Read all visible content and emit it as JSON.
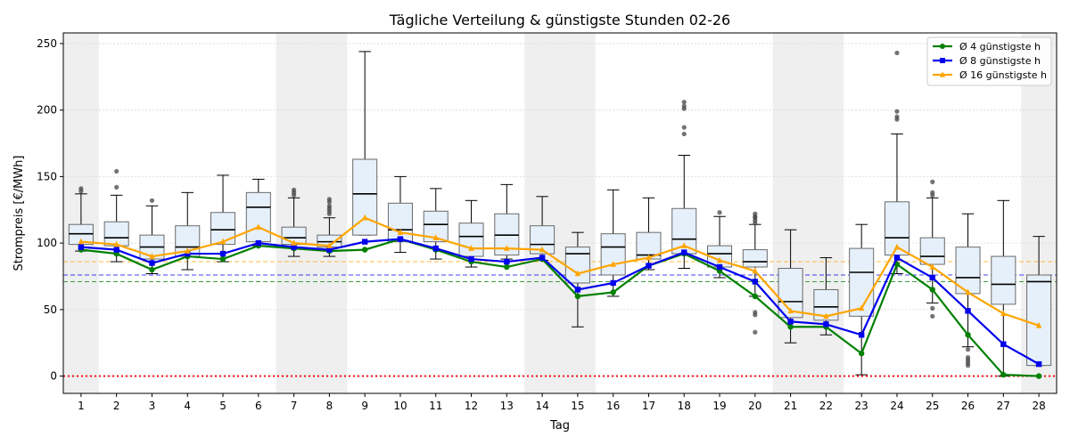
{
  "chart_data": {
    "type": "box",
    "title": "Tägliche Verteilung & günstigste Stunden 02-26",
    "xlabel": "Tag",
    "ylabel": "Strompreis [€/MWh]",
    "ylim": [
      -13,
      258
    ],
    "yticks": [
      0,
      50,
      100,
      150,
      200,
      250
    ],
    "x": [
      1,
      2,
      3,
      4,
      5,
      6,
      7,
      8,
      9,
      10,
      11,
      12,
      13,
      14,
      15,
      16,
      17,
      18,
      19,
      20,
      21,
      22,
      23,
      24,
      25,
      26,
      27,
      28
    ],
    "weekend_days": [
      1,
      7,
      8,
      14,
      15,
      21,
      22,
      28
    ],
    "grid": true,
    "legend_position": "top-right",
    "boxes": [
      {
        "day": 1,
        "whislo": 94,
        "q1": 99,
        "med": 107,
        "q3": 114,
        "whishi": 137,
        "fliers": [
          139,
          141
        ]
      },
      {
        "day": 2,
        "whislo": 86,
        "q1": 98,
        "med": 104,
        "q3": 116,
        "whishi": 136,
        "fliers": [
          142,
          154
        ]
      },
      {
        "day": 3,
        "whislo": 77,
        "q1": 88,
        "med": 97,
        "q3": 106,
        "whishi": 128,
        "fliers": [
          132
        ]
      },
      {
        "day": 4,
        "whislo": 80,
        "q1": 90,
        "med": 97,
        "q3": 113,
        "whishi": 138,
        "fliers": []
      },
      {
        "day": 5,
        "whislo": 86,
        "q1": 99,
        "med": 110,
        "q3": 123,
        "whishi": 151,
        "fliers": []
      },
      {
        "day": 6,
        "whislo": 98,
        "q1": 101,
        "med": 127,
        "q3": 138,
        "whishi": 148,
        "fliers": []
      },
      {
        "day": 7,
        "whislo": 90,
        "q1": 99,
        "med": 104,
        "q3": 112,
        "whishi": 134,
        "fliers": [
          136,
          138,
          140
        ]
      },
      {
        "day": 8,
        "whislo": 90,
        "q1": 97,
        "med": 101,
        "q3": 106,
        "whishi": 119,
        "fliers": [
          122,
          124,
          126,
          128,
          131,
          133
        ]
      },
      {
        "day": 9,
        "whislo": 106,
        "q1": 106,
        "med": 137,
        "q3": 163,
        "whishi": 244,
        "fliers": []
      },
      {
        "day": 10,
        "whislo": 93,
        "q1": 101,
        "med": 110,
        "q3": 130,
        "whishi": 150,
        "fliers": []
      },
      {
        "day": 11,
        "whislo": 88,
        "q1": 101,
        "med": 114,
        "q3": 124,
        "whishi": 141,
        "fliers": []
      },
      {
        "day": 12,
        "whislo": 82,
        "q1": 90,
        "med": 105,
        "q3": 115,
        "whishi": 132,
        "fliers": []
      },
      {
        "day": 13,
        "whislo": 88,
        "q1": 91,
        "med": 106,
        "q3": 122,
        "whishi": 144,
        "fliers": []
      },
      {
        "day": 14,
        "whislo": 87,
        "q1": 92,
        "med": 99,
        "q3": 113,
        "whishi": 135,
        "fliers": []
      },
      {
        "day": 15,
        "whislo": 37,
        "q1": 70,
        "med": 92,
        "q3": 97,
        "whishi": 108,
        "fliers": []
      },
      {
        "day": 16,
        "whislo": 60,
        "q1": 76,
        "med": 97,
        "q3": 107,
        "whishi": 140,
        "fliers": []
      },
      {
        "day": 17,
        "whislo": 80,
        "q1": 88,
        "med": 91,
        "q3": 108,
        "whishi": 134,
        "fliers": []
      },
      {
        "day": 18,
        "whislo": 81,
        "q1": 92,
        "med": 103,
        "q3": 126,
        "whishi": 166,
        "fliers": [
          182,
          187,
          201,
          203,
          206
        ]
      },
      {
        "day": 19,
        "whislo": 74,
        "q1": 82,
        "med": 92,
        "q3": 98,
        "whishi": 120,
        "fliers": [
          123
        ]
      },
      {
        "day": 20,
        "whislo": 60,
        "q1": 82,
        "med": 86,
        "q3": 95,
        "whishi": 114,
        "fliers": [
          33,
          46,
          48,
          115,
          117,
          119,
          120,
          122
        ]
      },
      {
        "day": 21,
        "whislo": 25,
        "q1": 44,
        "med": 56,
        "q3": 81,
        "whishi": 110,
        "fliers": []
      },
      {
        "day": 22,
        "whislo": 31,
        "q1": 42,
        "med": 52,
        "q3": 65,
        "whishi": 89,
        "fliers": []
      },
      {
        "day": 23,
        "whislo": 1,
        "q1": 45,
        "med": 78,
        "q3": 96,
        "whishi": 114,
        "fliers": []
      },
      {
        "day": 24,
        "whislo": 77,
        "q1": 91,
        "med": 104,
        "q3": 131,
        "whishi": 182,
        "fliers": [
          193,
          195,
          199,
          243
        ]
      },
      {
        "day": 25,
        "whislo": 55,
        "q1": 84,
        "med": 90,
        "q3": 104,
        "whishi": 134,
        "fliers": [
          45,
          51,
          136,
          138,
          146
        ]
      },
      {
        "day": 26,
        "whislo": 22,
        "q1": 62,
        "med": 74,
        "q3": 97,
        "whishi": 122,
        "fliers": [
          8,
          10,
          12,
          14,
          20
        ]
      },
      {
        "day": 27,
        "whislo": 0,
        "q1": 54,
        "med": 69,
        "q3": 90,
        "whishi": 132,
        "fliers": []
      },
      {
        "day": 28,
        "whislo": 8,
        "q1": 8,
        "med": 71,
        "q3": 76,
        "whishi": 105,
        "fliers": []
      }
    ],
    "series": [
      {
        "name": "Ø 4 günstigste h",
        "color": "#008000",
        "marker": "circle",
        "values": [
          95,
          92,
          80,
          90,
          88,
          98,
          96,
          94,
          95,
          103,
          95,
          86,
          82,
          88,
          60,
          63,
          83,
          92,
          79,
          60,
          37,
          37,
          17,
          84,
          65,
          31,
          1,
          0
        ]
      },
      {
        "name": "Ø 8 günstigste h",
        "color": "#0000ee",
        "marker": "square",
        "values": [
          97,
          95,
          85,
          92,
          92,
          100,
          97,
          95,
          101,
          103,
          96,
          88,
          86,
          89,
          65,
          70,
          83,
          93,
          82,
          71,
          41,
          39,
          31,
          89,
          74,
          49,
          24,
          9
        ]
      },
      {
        "name": "Ø 16 günstigste h",
        "color": "#ffa500",
        "marker": "triangle",
        "values": [
          101,
          99,
          90,
          94,
          101,
          112,
          100,
          98,
          119,
          108,
          104,
          96,
          96,
          95,
          77,
          84,
          89,
          98,
          87,
          79,
          49,
          45,
          51,
          97,
          82,
          63,
          47,
          38
        ]
      }
    ],
    "reference_lines": [
      {
        "value": 86,
        "color": "#ffa500",
        "style": "dashed"
      },
      {
        "value": 76,
        "color": "#0000ee",
        "style": "dashed"
      },
      {
        "value": 71,
        "color": "#008000",
        "style": "dashed"
      },
      {
        "value": 0,
        "color": "#ff0000",
        "style": "dotted"
      }
    ]
  }
}
